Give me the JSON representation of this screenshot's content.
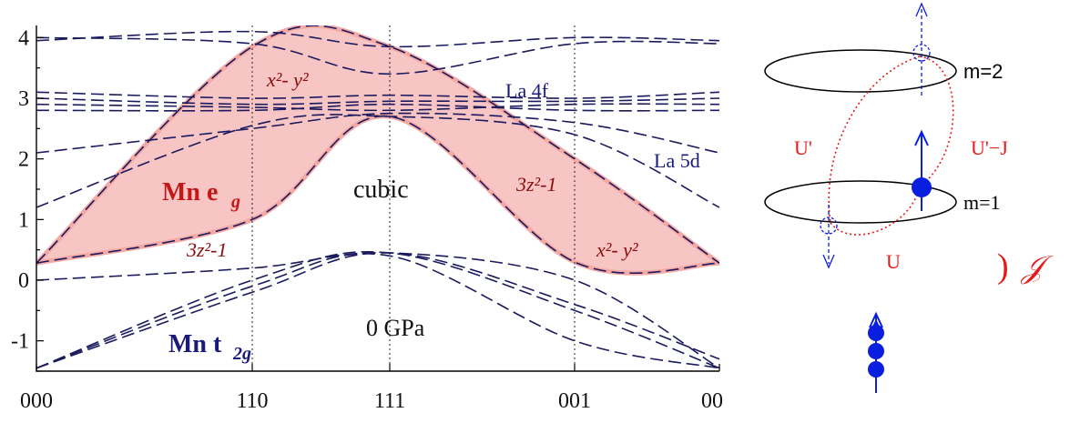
{
  "chart_data": {
    "type": "line",
    "x_ticks": [
      "000",
      "110",
      "111",
      "001",
      "00"
    ],
    "y_ticks": [
      "4",
      "3",
      "2",
      "1",
      "0",
      "-1"
    ],
    "ylim": [
      -1.5,
      4.2
    ],
    "grid": "vertical dotted at symmetry points",
    "annotations": {
      "eg_label": "Mn e",
      "eg_sub": "g",
      "t2g_label": "Mn t",
      "t2g_sub": "2g",
      "la4f_label": "La 4f",
      "la5d_label": "La 5d",
      "cubic_label": "cubic",
      "pressure_label": "0 GPa",
      "orb_left_top": "x²- y²",
      "orb_left_bottom": "3z²-1",
      "orb_right_top": "3z²-1",
      "orb_right_bottom": "x²- y²"
    },
    "eg_band_upper": [
      [
        0,
        0.28
      ],
      [
        1,
        3.85
      ],
      [
        2,
        3.85
      ],
      [
        3,
        2.0
      ],
      [
        4,
        0.28
      ]
    ],
    "eg_band_lower": [
      [
        0,
        0.28
      ],
      [
        1,
        1.0
      ],
      [
        2,
        2.7
      ],
      [
        3,
        0.3
      ],
      [
        4,
        0.28
      ]
    ],
    "series": [
      {
        "values": [
          [
            0,
            0.28
          ],
          [
            1,
            3.85
          ],
          [
            2,
            3.85
          ],
          [
            3,
            2.0
          ],
          [
            4,
            0.28
          ]
        ]
      },
      {
        "values": [
          [
            0,
            0.28
          ],
          [
            1,
            1.0
          ],
          [
            2,
            2.7
          ],
          [
            3,
            0.3
          ],
          [
            4,
            0.28
          ]
        ]
      },
      {
        "values": [
          [
            0,
            1.2
          ],
          [
            1,
            2.55
          ],
          [
            2,
            2.7
          ],
          [
            3,
            2.4
          ],
          [
            4,
            1.2
          ]
        ]
      },
      {
        "values": [
          [
            0,
            2.1
          ],
          [
            1,
            2.5
          ],
          [
            2,
            2.75
          ],
          [
            3,
            2.6
          ],
          [
            4,
            2.1
          ]
        ]
      },
      {
        "values": [
          [
            0,
            3.1
          ],
          [
            1,
            3.0
          ],
          [
            2,
            3.05
          ],
          [
            3,
            3.0
          ],
          [
            4,
            3.1
          ]
        ]
      },
      {
        "values": [
          [
            0,
            3.0
          ],
          [
            1,
            2.9
          ],
          [
            2,
            2.95
          ],
          [
            3,
            2.95
          ],
          [
            4,
            3.0
          ]
        ]
      },
      {
        "values": [
          [
            0,
            2.9
          ],
          [
            1,
            2.85
          ],
          [
            2,
            2.8
          ],
          [
            3,
            2.9
          ],
          [
            4,
            2.9
          ]
        ]
      },
      {
        "values": [
          [
            0,
            2.8
          ],
          [
            1,
            2.8
          ],
          [
            2,
            2.9
          ],
          [
            3,
            2.8
          ],
          [
            4,
            2.8
          ]
        ]
      },
      {
        "values": [
          [
            0,
            4.0
          ],
          [
            1,
            3.9
          ],
          [
            2,
            3.4
          ],
          [
            3,
            3.9
          ],
          [
            4,
            3.9
          ]
        ]
      },
      {
        "values": [
          [
            0,
            3.95
          ],
          [
            1,
            4.1
          ],
          [
            2,
            3.85
          ],
          [
            3,
            4.0
          ],
          [
            4,
            3.95
          ]
        ]
      },
      {
        "values": [
          [
            0,
            0.0
          ],
          [
            1,
            0.2
          ],
          [
            2,
            0.45
          ],
          [
            3,
            0.0
          ],
          [
            4,
            -1.45
          ]
        ]
      },
      {
        "values": [
          [
            0,
            -1.45
          ],
          [
            1,
            0.0
          ],
          [
            2,
            0.45
          ],
          [
            3,
            -0.5
          ],
          [
            4,
            -1.45
          ]
        ]
      },
      {
        "values": [
          [
            0,
            -1.45
          ],
          [
            1,
            -0.2
          ],
          [
            2,
            0.45
          ],
          [
            3,
            -0.4
          ],
          [
            4,
            -1.3
          ]
        ]
      },
      {
        "values": [
          [
            0,
            -1.45
          ],
          [
            1,
            -0.1
          ],
          [
            2,
            0.4
          ],
          [
            3,
            -1.0
          ],
          [
            4,
            -1.45
          ]
        ]
      }
    ]
  },
  "diagram": {
    "m2_label": "m=2",
    "m1_label": "m=1",
    "u_label": "U",
    "u_prime_label": "U'",
    "u_prime_minus_j_label": "U'−J",
    "j_symbol": "𝒥",
    "paren": ")",
    "colors": {
      "electron": "#0a1ee0",
      "interaction": "#e41b1b"
    }
  }
}
